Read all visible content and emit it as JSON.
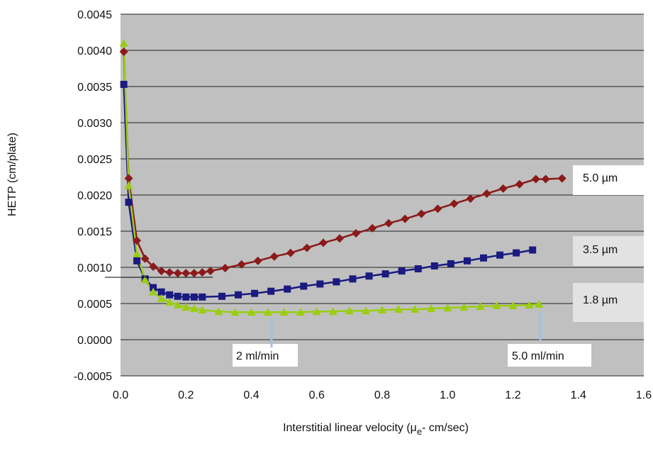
{
  "chart_data": {
    "type": "line",
    "title": "",
    "xlabel": "Interstitial linear velocity (μe- cm/sec)",
    "xlabel_main": "Interstitial linear velocity (μ",
    "xlabel_sub": "e",
    "xlabel_tail": "- cm/sec)",
    "ylabel": "HETP (cm/plate)",
    "xlim": [
      0,
      1.6
    ],
    "ylim": [
      -0.0005,
      0.0045
    ],
    "x_ticks": [
      "0.0",
      "0.2",
      "0.4",
      "0.6",
      "0.8",
      "1.0",
      "1.2",
      "1.4",
      "1.6"
    ],
    "y_ticks": [
      "-0.0005",
      "0.0000",
      "0.0005",
      "0.0010",
      "0.0015",
      "0.0020",
      "0.0025",
      "0.0030",
      "0.0035",
      "0.0040",
      "0.0045"
    ],
    "grid": "horizontal",
    "plot_background": "#c0c0c0",
    "series": [
      {
        "label": "5.0 µm",
        "color": "#8b1a1a",
        "marker": "diamond",
        "x": [
          0.01,
          0.025,
          0.05,
          0.075,
          0.1,
          0.125,
          0.15,
          0.175,
          0.2,
          0.225,
          0.25,
          0.275,
          0.32,
          0.37,
          0.42,
          0.47,
          0.52,
          0.57,
          0.62,
          0.67,
          0.72,
          0.77,
          0.82,
          0.87,
          0.92,
          0.97,
          1.02,
          1.07,
          1.12,
          1.17,
          1.22,
          1.27,
          1.3,
          1.35
        ],
        "y": [
          0.00398,
          0.00223,
          0.00137,
          0.00112,
          0.00101,
          0.00095,
          0.00093,
          0.00092,
          0.00092,
          0.00092,
          0.00093,
          0.00095,
          0.00099,
          0.00104,
          0.00109,
          0.00115,
          0.0012,
          0.00127,
          0.00134,
          0.0014,
          0.00147,
          0.00154,
          0.00161,
          0.00167,
          0.00174,
          0.00181,
          0.00188,
          0.00195,
          0.00202,
          0.00209,
          0.00215,
          0.00222,
          0.00222,
          0.00223
        ]
      },
      {
        "label": "3.5 µm",
        "color": "#1a1a80",
        "marker": "square",
        "x": [
          0.01,
          0.025,
          0.05,
          0.075,
          0.1,
          0.125,
          0.15,
          0.175,
          0.2,
          0.225,
          0.25,
          0.31,
          0.36,
          0.41,
          0.46,
          0.51,
          0.56,
          0.61,
          0.66,
          0.71,
          0.76,
          0.81,
          0.86,
          0.91,
          0.96,
          1.01,
          1.06,
          1.11,
          1.16,
          1.21,
          1.26
        ],
        "y": [
          0.00353,
          0.0019,
          0.00109,
          0.00084,
          0.00072,
          0.00066,
          0.00062,
          0.0006,
          0.00059,
          0.00059,
          0.00059,
          0.0006,
          0.00062,
          0.00064,
          0.00067,
          0.0007,
          0.00074,
          0.00077,
          0.0008,
          0.00084,
          0.00088,
          0.00091,
          0.00095,
          0.00098,
          0.00102,
          0.00105,
          0.00109,
          0.00113,
          0.00117,
          0.0012,
          0.00124
        ]
      },
      {
        "label": "1.8 µm",
        "color": "#9acd12",
        "marker": "triangle",
        "x": [
          0.01,
          0.025,
          0.05,
          0.075,
          0.1,
          0.125,
          0.15,
          0.175,
          0.2,
          0.225,
          0.25,
          0.3,
          0.35,
          0.4,
          0.45,
          0.5,
          0.55,
          0.6,
          0.65,
          0.7,
          0.75,
          0.8,
          0.85,
          0.9,
          0.95,
          1.0,
          1.05,
          1.1,
          1.15,
          1.2,
          1.25,
          1.28
        ],
        "y": [
          0.0041,
          0.00213,
          0.00119,
          0.00083,
          0.00066,
          0.00057,
          0.00052,
          0.00048,
          0.00045,
          0.00043,
          0.00041,
          0.00039,
          0.00038,
          0.00038,
          0.00038,
          0.00038,
          0.00038,
          0.00039,
          0.00039,
          0.0004,
          0.0004,
          0.00041,
          0.00042,
          0.00042,
          0.00043,
          0.00044,
          0.00045,
          0.00046,
          0.00047,
          0.00047,
          0.00048,
          0.00049
        ]
      }
    ],
    "annotations": [
      {
        "text": "2 ml/min",
        "x": 0.46
      },
      {
        "text": "5.0 ml/min",
        "x": 1.28
      }
    ]
  }
}
